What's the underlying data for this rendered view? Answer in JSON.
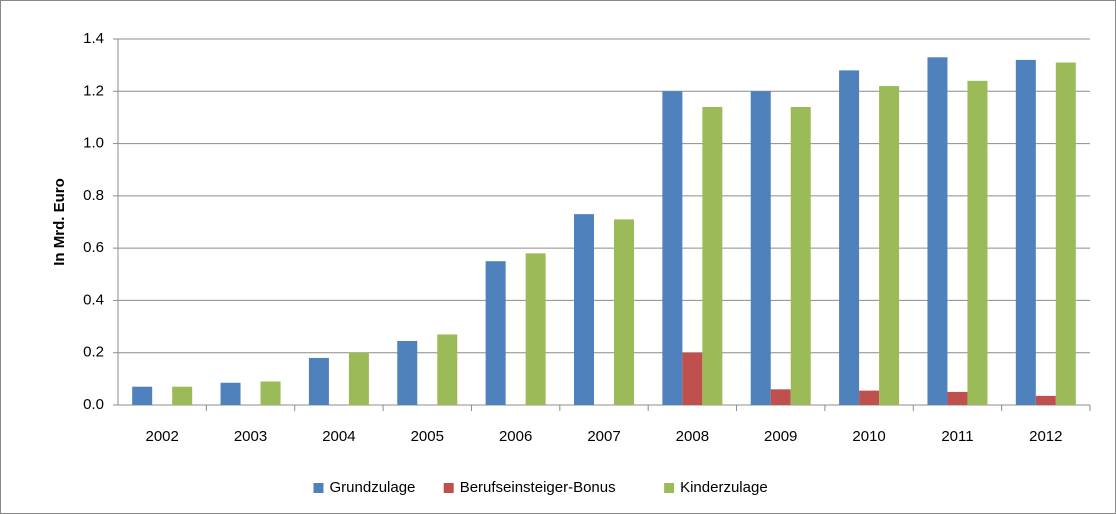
{
  "chart_data": {
    "type": "bar",
    "y_label": "In Mrd. Euro",
    "categories": [
      "2002",
      "2003",
      "2004",
      "2005",
      "2006",
      "2007",
      "2008",
      "2009",
      "2010",
      "2011",
      "2012"
    ],
    "series": [
      {
        "name": "Grundzulage",
        "color": "#4f81bd",
        "values": [
          0.07,
          0.085,
          0.18,
          0.245,
          0.55,
          0.73,
          1.2,
          1.2,
          1.28,
          1.33,
          1.32
        ]
      },
      {
        "name": "Berufseinsteiger-Bonus",
        "color": "#c0504d",
        "values": [
          null,
          null,
          null,
          null,
          null,
          null,
          0.2,
          0.06,
          0.055,
          0.05,
          0.035
        ]
      },
      {
        "name": "Kinderzulage",
        "color": "#9bbb59",
        "values": [
          0.07,
          0.09,
          0.2,
          0.27,
          0.58,
          0.71,
          1.14,
          1.14,
          1.22,
          1.24,
          1.31
        ]
      }
    ],
    "ylim": [
      0,
      1.4
    ],
    "yticks": [
      {
        "value": 0,
        "label": "0.0"
      },
      0.2,
      0.4,
      0.6,
      0.8,
      {
        "value": 1,
        "label": "1.0"
      },
      1.2,
      1.4
    ],
    "grid": true,
    "legend": "bottom"
  }
}
